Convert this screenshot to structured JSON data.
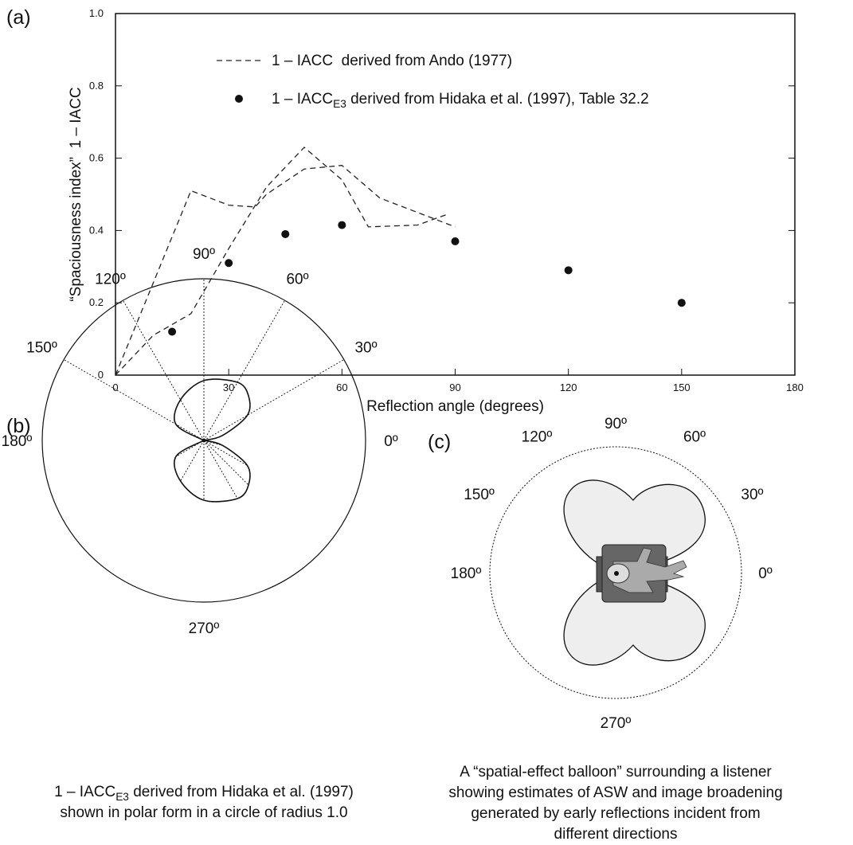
{
  "chart_data": [
    {
      "type": "line",
      "panel_label": "(a)",
      "x_label": "Reflection angle (degrees)",
      "y_label": "“Spaciousness index”  1 – IACC",
      "xlim": [
        0,
        180
      ],
      "xticks": [
        0,
        30,
        60,
        90,
        120,
        150,
        180
      ],
      "ylim": [
        0,
        1
      ],
      "yticks": [
        0,
        0.2,
        0.4,
        0.6,
        0.8,
        {
          "value": 1,
          "label": "1.0"
        }
      ],
      "series": [
        {
          "name": "1 – IACC  derived from Ando (1977)",
          "type": "line",
          "style": "dashed",
          "color": "#222222",
          "x": [
            0,
            20,
            30,
            37,
            40,
            50,
            60,
            70,
            80,
            90
          ],
          "values": [
            0,
            0.51,
            0.47,
            0.465,
            0.5,
            0.57,
            0.58,
            0.49,
            0.45,
            0.41
          ]
        },
        {
          "type": "line",
          "style": "dashed",
          "color": "#222222",
          "x": [
            0,
            10,
            20,
            30,
            40,
            50,
            60,
            67,
            80,
            88
          ],
          "values": [
            0,
            0.11,
            0.17,
            0.35,
            0.52,
            0.63,
            0.54,
            0.41,
            0.415,
            0.445
          ]
        },
        {
          "name": {
            "text": "1 – IACC",
            "sub": "E3",
            "tail": " derived from Hidaka et al. (1997), Table 32.2"
          },
          "type": "scatter",
          "color": "#111111",
          "x": [
            15,
            30,
            45,
            60,
            90,
            120,
            150
          ],
          "values": [
            0.12,
            0.31,
            0.39,
            0.415,
            0.37,
            0.29,
            0.2
          ]
        }
      ]
    },
    {
      "type": "polar",
      "panel_label": "(b)",
      "rlim": [
        0,
        1
      ],
      "angle_ticks": [
        {
          "value": 0,
          "label": "0º"
        },
        {
          "value": 30,
          "label": "30º"
        },
        {
          "value": 60,
          "label": "60º"
        },
        {
          "value": 90,
          "label": "90º"
        },
        {
          "value": 120,
          "label": "120º"
        },
        {
          "value": 150,
          "label": "150º"
        },
        {
          "value": 180,
          "label": "180º"
        },
        {
          "value": 270,
          "label": "270º"
        }
      ],
      "theta": [
        15,
        30,
        45,
        60,
        90,
        120,
        150
      ],
      "r": [
        0.12,
        0.31,
        0.39,
        0.415,
        0.37,
        0.29,
        0.2
      ],
      "caption": [
        {
          "text": "1 – IACC",
          "sub": "E3",
          "tail": " derived from Hidaka et al. (1997)"
        },
        "shown in polar form in a circle of radius 1.0"
      ]
    },
    {
      "type": "balloon",
      "panel_label": "(c)",
      "angle_ticks": [
        {
          "value": 0,
          "label": "0º"
        },
        {
          "value": 30,
          "label": "30º"
        },
        {
          "value": 60,
          "label": "60º"
        },
        {
          "value": 90,
          "label": "90º"
        },
        {
          "value": 120,
          "label": "120º"
        },
        {
          "value": 150,
          "label": "150º"
        },
        {
          "value": 180,
          "label": "180º"
        },
        {
          "value": 270,
          "label": "270º"
        }
      ],
      "caption": [
        "A “spatial-effect balloon” surrounding a listener",
        "showing estimates of ASW and image broadening",
        "generated by early reflections incident from",
        "different directions"
      ]
    }
  ]
}
